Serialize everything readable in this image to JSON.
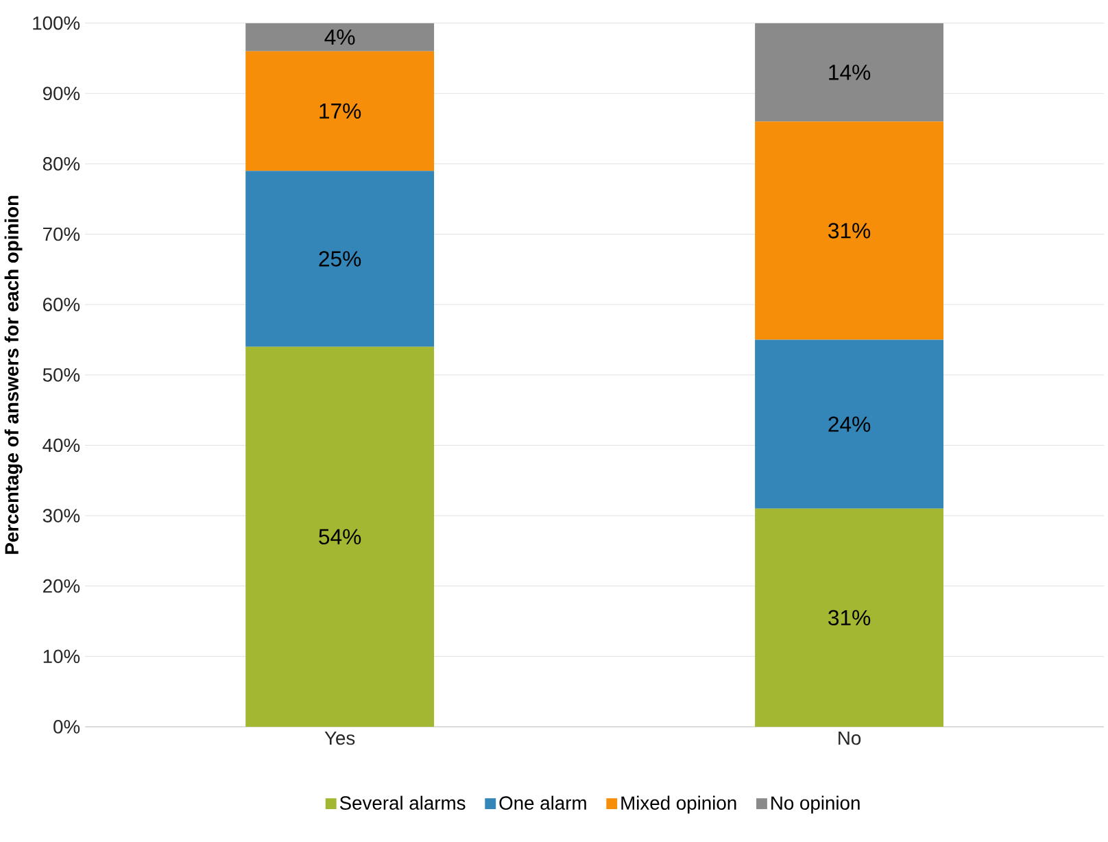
{
  "chart_data": {
    "type": "bar",
    "stacked": true,
    "ylabel": "Percentage of answers for each opinion",
    "categories": [
      "Yes",
      "No"
    ],
    "series": [
      {
        "name": "Several alarms",
        "color": "#a4b732",
        "values": [
          54,
          31
        ],
        "value_labels": [
          "54%",
          "31%"
        ]
      },
      {
        "name": "One alarm",
        "color": "#3485b8",
        "values": [
          25,
          24
        ],
        "value_labels": [
          "25%",
          "24%"
        ]
      },
      {
        "name": "Mixed opinion",
        "color": "#f68e0a",
        "values": [
          17,
          31
        ],
        "value_labels": [
          "17%",
          "31%"
        ]
      },
      {
        "name": "No opinion",
        "color": "#8a8a8a",
        "values": [
          4,
          14
        ],
        "value_labels": [
          "4%",
          "14%"
        ]
      }
    ],
    "ylim": [
      0,
      100
    ],
    "yticks": [
      {
        "value": 0,
        "label": "0%"
      },
      {
        "value": 10,
        "label": "10%"
      },
      {
        "value": 20,
        "label": "20%"
      },
      {
        "value": 30,
        "label": "30%"
      },
      {
        "value": 40,
        "label": "40%"
      },
      {
        "value": 50,
        "label": "50%"
      },
      {
        "value": 60,
        "label": "60%"
      },
      {
        "value": 70,
        "label": "70%"
      },
      {
        "value": 80,
        "label": "80%"
      },
      {
        "value": 90,
        "label": "90%"
      },
      {
        "value": 100,
        "label": "100%"
      }
    ],
    "grid": "y",
    "legend": "bottom"
  }
}
